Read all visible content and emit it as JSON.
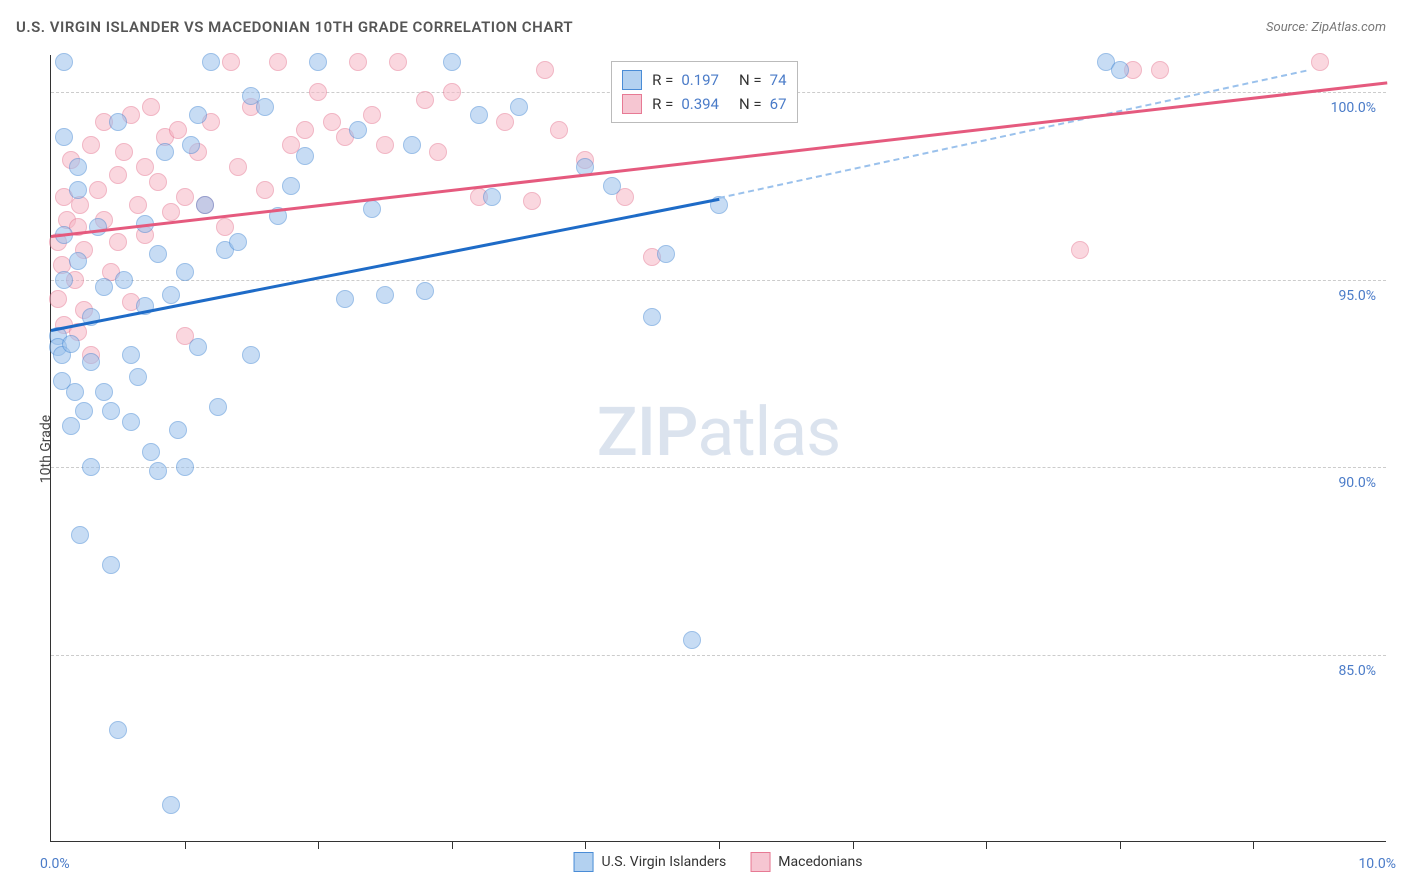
{
  "header": {
    "title": "U.S. VIRGIN ISLANDER VS MACEDONIAN 10TH GRADE CORRELATION CHART",
    "source_prefix": "Source: ",
    "source": "ZipAtlas.com"
  },
  "chart": {
    "type": "scatter",
    "y_axis_label": "10th Grade",
    "x_min_label": "0.0%",
    "x_max_label": "10.0%",
    "xlim": [
      0,
      10
    ],
    "ylim": [
      80,
      101
    ],
    "x_ticks": [
      1,
      2,
      3,
      4,
      5,
      6,
      7,
      8,
      9
    ],
    "y_ticks": [
      {
        "v": 85,
        "label": "85.0%"
      },
      {
        "v": 90,
        "label": "90.0%"
      },
      {
        "v": 95,
        "label": "95.0%"
      },
      {
        "v": 100,
        "label": "100.0%"
      }
    ],
    "background_color": "#ffffff",
    "grid_color": "#cccccc",
    "series": [
      {
        "name": "U.S. Virgin Islanders",
        "color_fill": "#9ac1ec",
        "color_stroke": "#4a8cd6",
        "class": "pt-blue",
        "R": "0.197",
        "N": "74",
        "trend": {
          "x1": 0,
          "y1": 93.7,
          "x2": 5,
          "y2": 97.2,
          "color": "#1e6bc7"
        },
        "trend_dashed": {
          "x1": 5,
          "y1": 97.2,
          "x2": 9.4,
          "y2": 100.6
        },
        "points": [
          [
            0.05,
            93.5
          ],
          [
            0.05,
            93.2
          ],
          [
            0.08,
            92.3
          ],
          [
            0.08,
            93.0
          ],
          [
            0.1,
            95.0
          ],
          [
            0.1,
            96.2
          ],
          [
            0.1,
            98.8
          ],
          [
            0.1,
            100.8
          ],
          [
            0.15,
            93.3
          ],
          [
            0.15,
            91.1
          ],
          [
            0.18,
            92.0
          ],
          [
            0.2,
            95.5
          ],
          [
            0.2,
            97.4
          ],
          [
            0.2,
            98.0
          ],
          [
            0.22,
            88.2
          ],
          [
            0.25,
            91.5
          ],
          [
            0.3,
            90.0
          ],
          [
            0.3,
            92.8
          ],
          [
            0.3,
            94.0
          ],
          [
            0.35,
            96.4
          ],
          [
            0.4,
            92.0
          ],
          [
            0.4,
            94.8
          ],
          [
            0.45,
            91.5
          ],
          [
            0.45,
            87.4
          ],
          [
            0.5,
            83.0
          ],
          [
            0.5,
            99.2
          ],
          [
            0.55,
            95.0
          ],
          [
            0.6,
            91.2
          ],
          [
            0.6,
            93.0
          ],
          [
            0.65,
            92.4
          ],
          [
            0.7,
            96.5
          ],
          [
            0.7,
            94.3
          ],
          [
            0.75,
            90.4
          ],
          [
            0.8,
            89.9
          ],
          [
            0.8,
            95.7
          ],
          [
            0.85,
            98.4
          ],
          [
            0.9,
            81.0
          ],
          [
            0.9,
            94.6
          ],
          [
            0.95,
            91.0
          ],
          [
            1.0,
            90.0
          ],
          [
            1.0,
            95.2
          ],
          [
            1.05,
            98.6
          ],
          [
            1.1,
            99.4
          ],
          [
            1.1,
            93.2
          ],
          [
            1.15,
            97.0
          ],
          [
            1.2,
            100.8
          ],
          [
            1.25,
            91.6
          ],
          [
            1.3,
            95.8
          ],
          [
            1.4,
            96.0
          ],
          [
            1.5,
            99.9
          ],
          [
            1.5,
            93.0
          ],
          [
            1.6,
            99.6
          ],
          [
            1.7,
            96.7
          ],
          [
            1.8,
            97.5
          ],
          [
            1.9,
            98.3
          ],
          [
            2.0,
            100.8
          ],
          [
            2.2,
            94.5
          ],
          [
            2.3,
            99.0
          ],
          [
            2.4,
            96.9
          ],
          [
            2.5,
            94.6
          ],
          [
            2.7,
            98.6
          ],
          [
            2.8,
            94.7
          ],
          [
            3.0,
            100.8
          ],
          [
            3.2,
            99.4
          ],
          [
            3.3,
            97.2
          ],
          [
            3.5,
            99.6
          ],
          [
            4.0,
            98.0
          ],
          [
            4.2,
            97.5
          ],
          [
            4.5,
            94.0
          ],
          [
            4.6,
            95.7
          ],
          [
            4.8,
            85.4
          ],
          [
            5.0,
            97.0
          ],
          [
            7.9,
            100.8
          ],
          [
            8.0,
            100.6
          ]
        ]
      },
      {
        "name": "Macedonians",
        "color_fill": "#f6b8c6",
        "color_stroke": "#e77a94",
        "class": "pt-pink",
        "R": "0.394",
        "N": "67",
        "trend": {
          "x1": 0,
          "y1": 96.2,
          "x2": 10,
          "y2": 100.3,
          "color": "#e55a7e"
        },
        "points": [
          [
            0.05,
            96.0
          ],
          [
            0.05,
            94.5
          ],
          [
            0.08,
            95.4
          ],
          [
            0.1,
            97.2
          ],
          [
            0.1,
            93.8
          ],
          [
            0.12,
            96.6
          ],
          [
            0.15,
            98.2
          ],
          [
            0.18,
            95.0
          ],
          [
            0.2,
            96.4
          ],
          [
            0.2,
            93.6
          ],
          [
            0.22,
            97.0
          ],
          [
            0.25,
            94.2
          ],
          [
            0.25,
            95.8
          ],
          [
            0.3,
            93.0
          ],
          [
            0.3,
            98.6
          ],
          [
            0.35,
            97.4
          ],
          [
            0.4,
            96.6
          ],
          [
            0.4,
            99.2
          ],
          [
            0.45,
            95.2
          ],
          [
            0.5,
            97.8
          ],
          [
            0.5,
            96.0
          ],
          [
            0.55,
            98.4
          ],
          [
            0.6,
            94.4
          ],
          [
            0.6,
            99.4
          ],
          [
            0.65,
            97.0
          ],
          [
            0.7,
            98.0
          ],
          [
            0.7,
            96.2
          ],
          [
            0.75,
            99.6
          ],
          [
            0.8,
            97.6
          ],
          [
            0.85,
            98.8
          ],
          [
            0.9,
            96.8
          ],
          [
            0.95,
            99.0
          ],
          [
            1.0,
            97.2
          ],
          [
            1.0,
            93.5
          ],
          [
            1.1,
            98.4
          ],
          [
            1.15,
            97.0
          ],
          [
            1.2,
            99.2
          ],
          [
            1.3,
            96.4
          ],
          [
            1.35,
            100.8
          ],
          [
            1.4,
            98.0
          ],
          [
            1.5,
            99.6
          ],
          [
            1.6,
            97.4
          ],
          [
            1.7,
            100.8
          ],
          [
            1.8,
            98.6
          ],
          [
            1.9,
            99.0
          ],
          [
            2.0,
            100.0
          ],
          [
            2.1,
            99.2
          ],
          [
            2.2,
            98.8
          ],
          [
            2.3,
            100.8
          ],
          [
            2.4,
            99.4
          ],
          [
            2.5,
            98.6
          ],
          [
            2.6,
            100.8
          ],
          [
            2.8,
            99.8
          ],
          [
            2.9,
            98.4
          ],
          [
            3.0,
            100.0
          ],
          [
            3.2,
            97.2
          ],
          [
            3.4,
            99.2
          ],
          [
            3.6,
            97.1
          ],
          [
            3.7,
            100.6
          ],
          [
            3.8,
            99.0
          ],
          [
            4.0,
            98.2
          ],
          [
            4.3,
            97.2
          ],
          [
            4.5,
            95.6
          ],
          [
            7.7,
            95.8
          ],
          [
            8.1,
            100.6
          ],
          [
            8.3,
            100.6
          ],
          [
            9.5,
            100.8
          ]
        ]
      }
    ],
    "legend_box": {
      "R_label": "R  =",
      "N_label": "N  ="
    },
    "bottom_legend": [
      {
        "label": "U.S. Virgin Islanders",
        "class": "sq-blue"
      },
      {
        "label": "Macedonians",
        "class": "sq-pink"
      }
    ],
    "watermark": {
      "zip": "ZIP",
      "atlas": "atlas"
    }
  }
}
